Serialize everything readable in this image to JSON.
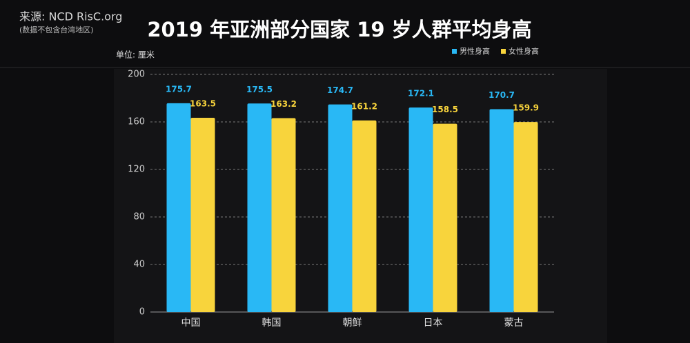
{
  "chart_data": {
    "type": "bar",
    "title": "2019 年亚洲部分国家 19 岁人群平均身高",
    "source": "来源: NCD RisC.org",
    "source_note": "(数据不包含台湾地区)",
    "unit_label": "单位: 厘米",
    "categories": [
      "中国",
      "韩国",
      "朝鲜",
      "日本",
      "蒙古"
    ],
    "series": [
      {
        "name": "男性身高",
        "color": "#29b8f5",
        "values": [
          175.7,
          175.5,
          174.7,
          172.1,
          170.7
        ]
      },
      {
        "name": "女性身高",
        "color": "#f8d43c",
        "values": [
          163.5,
          163.2,
          161.2,
          158.5,
          159.9
        ]
      }
    ],
    "ylim": [
      0,
      200
    ],
    "yticks": [
      0,
      40,
      80,
      120,
      160,
      200
    ],
    "grid": true,
    "legend": "top-right"
  }
}
